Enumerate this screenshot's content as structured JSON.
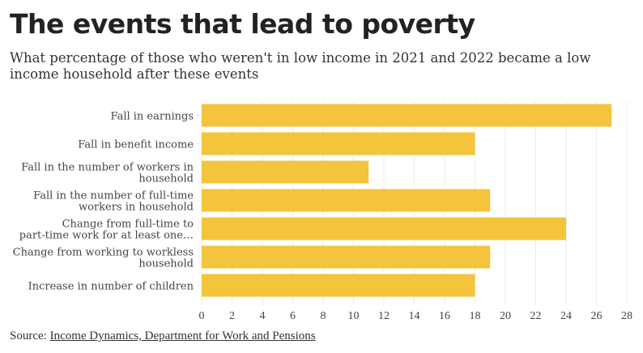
{
  "title": "The events that lead to poverty",
  "subtitle": "What percentage of those who weren't in low income in 2021 and 2022 became a low income household after these events",
  "source_label": "Source:",
  "source_link": "Income Dynamics, Department for Work and Pensions",
  "chart_data": {
    "type": "bar",
    "orientation": "horizontal",
    "categories": [
      [
        "Fall in earnings"
      ],
      [
        "Fall in benefit income"
      ],
      [
        "Fall in the number of workers in",
        "household"
      ],
      [
        "Fall in the number of full-time",
        "workers in household"
      ],
      [
        "Change from full-time to",
        "part-time work for at least one…"
      ],
      [
        "Change from working to workless",
        "household"
      ],
      [
        "Increase in number of children"
      ]
    ],
    "values": [
      27,
      18,
      11,
      19,
      24,
      19,
      18
    ],
    "xlim": [
      0,
      28
    ],
    "xticks": [
      0,
      2,
      4,
      6,
      8,
      10,
      12,
      14,
      16,
      18,
      20,
      22,
      24,
      26,
      28
    ],
    "xlabel": "",
    "ylabel": "",
    "grid": true,
    "bar_color": "#f3c43c"
  }
}
